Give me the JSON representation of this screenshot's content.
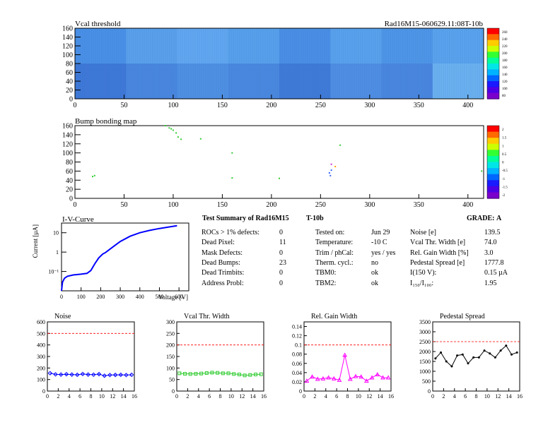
{
  "header": {
    "title": "Vcal threshold",
    "run_label": "Rad16M15-060629.11:08T-10b"
  },
  "vcal_map": {
    "title": "Vcal threshold",
    "xlim": [
      0,
      416
    ],
    "ylim": [
      0,
      160
    ],
    "xticks": [
      "0",
      "50",
      "100",
      "150",
      "200",
      "250",
      "300",
      "350",
      "400"
    ],
    "yticks": [
      "0",
      "20",
      "40",
      "60",
      "80",
      "100",
      "120",
      "140",
      "160"
    ],
    "palette_labels": [
      "260",
      "240",
      "220",
      "200",
      "180",
      "160",
      "140",
      "120",
      "100",
      "80"
    ],
    "roc_shades_top": [
      "#4a90e6",
      "#5aa0ea",
      "#62a8ef",
      "#58a0ea",
      "#4a8fe4",
      "#5aa2ec",
      "#4f96e6",
      "#5ba3ec"
    ],
    "roc_shades_bottom": [
      "#3f78d6",
      "#4a86de",
      "#4f90e2",
      "#4a88de",
      "#3f7ad6",
      "#4f8ee2",
      "#4a86de",
      "#6cb2f0"
    ]
  },
  "bump_map": {
    "title": "Bump bonding map",
    "xlim": [
      0,
      416
    ],
    "ylim": [
      0,
      160
    ],
    "palette_labels": [
      "2",
      "1.5",
      "1",
      "0.5",
      "0",
      "-0.5",
      "-1",
      "-1.5",
      "-2"
    ]
  },
  "iv_curve": {
    "title": "I-V-Curve",
    "xlabel": "Voltage [V]",
    "ylabel": "Current [µA]",
    "xticks": [
      "0",
      "100",
      "200",
      "300",
      "400",
      "500",
      "600"
    ],
    "ytick_labels": [
      "10",
      "1",
      "10⁻¹"
    ]
  },
  "summary": {
    "title": "Test Summary of Rad16M15",
    "condition": "T-10b",
    "grade_label": "GRADE:",
    "grade": "A",
    "col1": [
      {
        "label": "ROCs > 1% defects:",
        "value": "0"
      },
      {
        "label": "Dead Pixel:",
        "value": "11"
      },
      {
        "label": "Mask Defects:",
        "value": "0"
      },
      {
        "label": "Dead Bumps:",
        "value": "23"
      },
      {
        "label": "Dead Trimbits:",
        "value": "0"
      },
      {
        "label": "Address Probl:",
        "value": "0"
      }
    ],
    "col2": [
      {
        "label": "Tested on:",
        "value": "Jun 29"
      },
      {
        "label": "Temperature:",
        "value": "-10 C"
      },
      {
        "label": "Trim / phCal:",
        "value": "yes / yes"
      },
      {
        "label": "Therm. cycl.:",
        "value": "no"
      },
      {
        "label": "TBM0:",
        "value": "ok"
      },
      {
        "label": "TBM2:",
        "value": "ok"
      }
    ],
    "col3": [
      {
        "label": "Noise [e]",
        "value": "139.5"
      },
      {
        "label": "Vcal Thr. Width [e]",
        "value": "74.0"
      },
      {
        "label": "Rel. Gain Width [%]",
        "value": "3.0"
      },
      {
        "label": "Pedestal Spread [e]",
        "value": "1777.8"
      },
      {
        "label": "I(150 V):",
        "value": "0.15 µA"
      },
      {
        "label": "I₁₅₀/I₁₀₀:",
        "value": "1.95"
      }
    ]
  },
  "chart_data": [
    {
      "type": "line",
      "title": "Noise",
      "x": [
        0,
        1,
        2,
        3,
        4,
        5,
        6,
        7,
        8,
        9,
        10,
        11,
        12,
        13,
        14,
        15
      ],
      "values": [
        155,
        145,
        143,
        146,
        143,
        141,
        148,
        143,
        142,
        147,
        133,
        139,
        140,
        141,
        139,
        141
      ],
      "xlim": [
        0,
        16
      ],
      "ylim": [
        0,
        600
      ],
      "threshold": 500,
      "xticks": [
        "0",
        "2",
        "4",
        "6",
        "8",
        "10",
        "12",
        "14",
        "16"
      ],
      "yticks": [
        "0",
        "100",
        "200",
        "300",
        "400",
        "500",
        "600"
      ],
      "color": "#0000ff",
      "threshold_color": "#ff0000"
    },
    {
      "type": "line",
      "title": "Vcal Thr. Width",
      "x": [
        0,
        1,
        2,
        3,
        4,
        5,
        6,
        7,
        8,
        9,
        10,
        11,
        12,
        13,
        14,
        15
      ],
      "values": [
        77,
        75,
        74,
        75,
        76,
        78,
        80,
        79,
        77,
        77,
        74,
        72,
        68,
        70,
        72,
        73
      ],
      "xlim": [
        0,
        16
      ],
      "ylim": [
        0,
        300
      ],
      "threshold": 200,
      "xticks": [
        "0",
        "2",
        "4",
        "6",
        "8",
        "10",
        "12",
        "14",
        "16"
      ],
      "yticks": [
        "0",
        "50",
        "100",
        "150",
        "200",
        "250",
        "300"
      ],
      "color": "#33cc33",
      "threshold_color": "#ff0000"
    },
    {
      "type": "line",
      "title": "Rel. Gain Width",
      "x": [
        0,
        1,
        2,
        3,
        4,
        5,
        6,
        7,
        8,
        9,
        10,
        11,
        12,
        13,
        14,
        15
      ],
      "values": [
        0.022,
        0.031,
        0.026,
        0.027,
        0.029,
        0.027,
        0.024,
        0.078,
        0.026,
        0.032,
        0.031,
        0.022,
        0.029,
        0.036,
        0.029,
        0.029
      ],
      "xlim": [
        0,
        16
      ],
      "ylim": [
        0,
        0.15
      ],
      "threshold": 0.1,
      "xticks": [
        "0",
        "2",
        "4",
        "6",
        "8",
        "10",
        "12",
        "14",
        "16"
      ],
      "yticks": [
        "0",
        "0.02",
        "0.04",
        "0.06",
        "0.08",
        "0.1",
        "0.12",
        "0.14"
      ],
      "color": "#ff00ff",
      "threshold_color": "#ff0000"
    },
    {
      "type": "line",
      "title": "Pedestal Spread",
      "x": [
        0,
        1,
        2,
        3,
        4,
        5,
        6,
        7,
        8,
        9,
        10,
        11,
        12,
        13,
        14,
        15
      ],
      "values": [
        1650,
        1950,
        1500,
        1250,
        1800,
        1850,
        1400,
        1700,
        1700,
        2050,
        1900,
        1700,
        2050,
        2300,
        1850,
        1950
      ],
      "xlim": [
        0,
        16
      ],
      "ylim": [
        0,
        3500
      ],
      "threshold": 2500,
      "xticks": [
        "0",
        "2",
        "4",
        "6",
        "8",
        "10",
        "12",
        "14",
        "16"
      ],
      "yticks": [
        "0",
        "500",
        "1000",
        "1500",
        "2000",
        "2500",
        "3000",
        "3500"
      ],
      "color": "#000000",
      "threshold_color": "#ff0000"
    }
  ]
}
